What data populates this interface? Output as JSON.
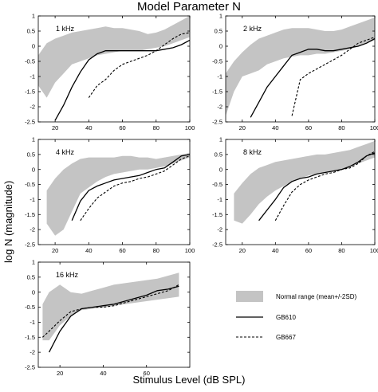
{
  "title": "Model Parameter N",
  "ylabel": "log N (magnitude)",
  "xlabel": "Stimulus Level (dB SPL)",
  "legend": [
    {
      "key": "band",
      "label": "Normal range (mean+/-2SD)"
    },
    {
      "key": "gb610",
      "label": "GB610"
    },
    {
      "key": "gb667",
      "label": "GB667"
    }
  ],
  "colors": {
    "band": "#c4c4c4",
    "axis": "#000000"
  },
  "chart_data": [
    {
      "type": "line",
      "title": "1 kHz",
      "xlim": [
        10,
        100
      ],
      "ylim": [
        -2.5,
        1
      ],
      "x_ticks": [
        20,
        40,
        60,
        80,
        100
      ],
      "y_ticks": [
        -2.5,
        -2,
        -1.5,
        -1,
        -0.5,
        0,
        0.5,
        1
      ],
      "band_x": [
        10,
        15,
        20,
        25,
        30,
        35,
        40,
        45,
        50,
        55,
        60,
        65,
        70,
        75,
        80,
        85,
        90,
        95,
        100
      ],
      "band_upper": [
        -0.3,
        0.1,
        0.25,
        0.35,
        0.45,
        0.5,
        0.55,
        0.6,
        0.65,
        0.6,
        0.6,
        0.55,
        0.5,
        0.4,
        0.45,
        0.55,
        0.7,
        0.85,
        1.0
      ],
      "band_lower": [
        -1.3,
        -1.7,
        -1.2,
        -0.9,
        -0.6,
        -0.5,
        -0.4,
        -0.3,
        -0.25,
        -0.2,
        -0.15,
        -0.15,
        -0.15,
        -0.1,
        -0.05,
        0.0,
        0.1,
        0.2,
        0.3
      ],
      "series": [
        {
          "name": "GB610",
          "style": "solid",
          "x": [
            20,
            25,
            30,
            35,
            40,
            45,
            50,
            55,
            60,
            65,
            70,
            75,
            80,
            85,
            90,
            95,
            100
          ],
          "y": [
            -2.45,
            -1.95,
            -1.35,
            -0.85,
            -0.45,
            -0.25,
            -0.15,
            -0.15,
            -0.15,
            -0.15,
            -0.15,
            -0.15,
            -0.15,
            -0.1,
            -0.05,
            0.05,
            0.2
          ]
        },
        {
          "name": "GB667",
          "style": "dashed",
          "x": [
            40,
            45,
            50,
            55,
            60,
            65,
            70,
            75,
            80,
            85,
            90,
            95,
            100
          ],
          "y": [
            -1.7,
            -1.3,
            -1.1,
            -0.8,
            -0.6,
            -0.5,
            -0.4,
            -0.3,
            -0.15,
            0.05,
            0.25,
            0.4,
            0.45
          ]
        }
      ]
    },
    {
      "type": "line",
      "title": "2 kHz",
      "xlim": [
        10,
        100
      ],
      "ylim": [
        -2.5,
        1
      ],
      "x_ticks": [
        20,
        40,
        60,
        80,
        100
      ],
      "y_ticks": [
        -2.5,
        -2,
        -1.5,
        -1,
        -0.5,
        0,
        0.5,
        1
      ],
      "band_x": [
        10,
        15,
        20,
        25,
        30,
        35,
        40,
        45,
        50,
        55,
        60,
        65,
        70,
        75,
        80,
        85,
        90,
        95,
        100
      ],
      "band_upper": [
        -0.9,
        -0.5,
        -0.2,
        0.05,
        0.25,
        0.35,
        0.45,
        0.55,
        0.6,
        0.6,
        0.6,
        0.55,
        0.5,
        0.5,
        0.55,
        0.65,
        0.75,
        0.85,
        0.95
      ],
      "band_lower": [
        -2.3,
        -1.5,
        -1.0,
        -0.9,
        -0.8,
        -0.6,
        -0.5,
        -0.4,
        -0.35,
        -0.3,
        -0.3,
        -0.25,
        -0.25,
        -0.2,
        -0.15,
        -0.1,
        0.0,
        0.1,
        0.2
      ],
      "series": [
        {
          "name": "GB610",
          "style": "solid",
          "x": [
            25,
            30,
            35,
            40,
            45,
            50,
            55,
            60,
            65,
            70,
            75,
            80,
            85,
            90,
            95,
            100
          ],
          "y": [
            -2.35,
            -1.85,
            -1.35,
            -1.0,
            -0.65,
            -0.3,
            -0.2,
            -0.1,
            -0.1,
            -0.15,
            -0.15,
            -0.1,
            -0.05,
            0.0,
            0.1,
            0.25
          ]
        },
        {
          "name": "GB667",
          "style": "dashed",
          "x": [
            50,
            55,
            60,
            65,
            70,
            75,
            80,
            85,
            90,
            95,
            100
          ],
          "y": [
            -2.3,
            -1.1,
            -0.9,
            -0.75,
            -0.6,
            -0.45,
            -0.3,
            -0.1,
            0.1,
            0.2,
            0.3
          ]
        }
      ]
    },
    {
      "type": "line",
      "title": "4 kHz",
      "xlim": [
        10,
        100
      ],
      "ylim": [
        -2.5,
        1
      ],
      "x_ticks": [
        20,
        40,
        60,
        80,
        100
      ],
      "y_ticks": [
        -2.5,
        -2,
        -1.5,
        -1,
        -0.5,
        0,
        0.5,
        1
      ],
      "band_x": [
        15,
        20,
        25,
        30,
        35,
        40,
        45,
        50,
        55,
        60,
        65,
        70,
        75,
        80,
        85,
        90,
        95,
        100
      ],
      "band_upper": [
        -0.7,
        -0.3,
        0.0,
        0.2,
        0.35,
        0.4,
        0.4,
        0.4,
        0.4,
        0.45,
        0.45,
        0.4,
        0.4,
        0.35,
        0.4,
        0.45,
        0.5,
        0.55
      ],
      "band_lower": [
        -1.8,
        -2.2,
        -2.0,
        -1.4,
        -0.8,
        -0.6,
        -0.4,
        -0.25,
        -0.15,
        -0.1,
        -0.05,
        0.0,
        0.0,
        0.05,
        0.1,
        0.2,
        0.3,
        0.4
      ],
      "series": [
        {
          "name": "GB610",
          "style": "solid",
          "x": [
            30,
            35,
            40,
            45,
            50,
            55,
            60,
            65,
            70,
            75,
            80,
            85,
            90,
            95,
            100
          ],
          "y": [
            -1.7,
            -1.05,
            -0.7,
            -0.55,
            -0.45,
            -0.35,
            -0.3,
            -0.25,
            -0.2,
            -0.1,
            0.0,
            0.05,
            0.25,
            0.45,
            0.5
          ]
        },
        {
          "name": "GB667",
          "style": "dashed",
          "x": [
            35,
            40,
            45,
            50,
            55,
            60,
            65,
            70,
            75,
            80,
            85,
            90,
            95,
            100
          ],
          "y": [
            -1.7,
            -1.3,
            -0.95,
            -0.75,
            -0.55,
            -0.45,
            -0.4,
            -0.3,
            -0.25,
            -0.15,
            -0.05,
            0.15,
            0.35,
            0.45
          ]
        }
      ]
    },
    {
      "type": "line",
      "title": "8 kHz",
      "xlim": [
        10,
        100
      ],
      "ylim": [
        -2.5,
        1
      ],
      "x_ticks": [
        20,
        40,
        60,
        80,
        100
      ],
      "y_ticks": [
        -2.5,
        -2,
        -1.5,
        -1,
        -0.5,
        0,
        0.5,
        1
      ],
      "band_x": [
        15,
        20,
        25,
        30,
        35,
        40,
        45,
        50,
        55,
        60,
        65,
        70,
        75,
        80,
        85,
        90,
        95,
        100
      ],
      "band_upper": [
        -0.8,
        -0.45,
        -0.15,
        0.05,
        0.15,
        0.25,
        0.3,
        0.35,
        0.4,
        0.45,
        0.5,
        0.5,
        0.55,
        0.6,
        0.65,
        0.75,
        0.85,
        0.95
      ],
      "band_lower": [
        -1.7,
        -1.8,
        -1.5,
        -1.15,
        -0.9,
        -0.7,
        -0.55,
        -0.4,
        -0.3,
        -0.2,
        -0.15,
        -0.1,
        -0.05,
        0.0,
        0.1,
        0.2,
        0.3,
        0.4
      ],
      "series": [
        {
          "name": "GB610",
          "style": "solid",
          "x": [
            30,
            35,
            40,
            45,
            50,
            55,
            60,
            65,
            70,
            75,
            80,
            85,
            90,
            95,
            100
          ],
          "y": [
            -1.7,
            -1.35,
            -1.0,
            -0.6,
            -0.4,
            -0.3,
            -0.25,
            -0.15,
            -0.1,
            -0.05,
            0.0,
            0.1,
            0.25,
            0.45,
            0.55
          ]
        },
        {
          "name": "GB667",
          "style": "dashed",
          "x": [
            40,
            45,
            50,
            55,
            60,
            65,
            70,
            75,
            80,
            85,
            90,
            95,
            100
          ],
          "y": [
            -1.7,
            -1.2,
            -0.75,
            -0.5,
            -0.35,
            -0.25,
            -0.15,
            -0.1,
            0.0,
            0.05,
            0.2,
            0.45,
            0.6
          ]
        }
      ]
    },
    {
      "type": "line",
      "title": "16 kHz",
      "xlim": [
        10,
        80
      ],
      "ylim": [
        -2.5,
        1
      ],
      "x_ticks": [
        20,
        40,
        60
      ],
      "y_ticks": [
        -2.5,
        -2,
        -1.5,
        -1,
        -0.5,
        0,
        0.5,
        1
      ],
      "band_x": [
        12,
        15,
        20,
        25,
        30,
        35,
        40,
        45,
        50,
        55,
        60,
        65,
        70,
        75
      ],
      "band_upper": [
        -0.4,
        0.0,
        0.25,
        0.0,
        -0.05,
        0.05,
        0.15,
        0.25,
        0.3,
        0.35,
        0.4,
        0.45,
        0.55,
        0.65
      ],
      "band_lower": [
        -1.6,
        -1.6,
        -1.1,
        -0.8,
        -0.6,
        -0.55,
        -0.5,
        -0.45,
        -0.4,
        -0.35,
        -0.3,
        -0.25,
        -0.2,
        -0.15
      ],
      "series": [
        {
          "name": "GB610",
          "style": "solid",
          "x": [
            15,
            20,
            25,
            30,
            35,
            40,
            45,
            50,
            55,
            60,
            65,
            70,
            75
          ],
          "y": [
            -2.0,
            -1.3,
            -0.8,
            -0.55,
            -0.5,
            -0.45,
            -0.4,
            -0.3,
            -0.2,
            -0.1,
            0.05,
            0.1,
            0.2
          ]
        },
        {
          "name": "GB667",
          "style": "dashed",
          "x": [
            12,
            15,
            20,
            25,
            30,
            35,
            40,
            45,
            50,
            55,
            60,
            65,
            70,
            75
          ],
          "y": [
            -1.5,
            -1.3,
            -0.95,
            -0.65,
            -0.55,
            -0.5,
            -0.5,
            -0.45,
            -0.35,
            -0.25,
            -0.15,
            -0.05,
            0.05,
            0.25
          ]
        }
      ]
    }
  ]
}
